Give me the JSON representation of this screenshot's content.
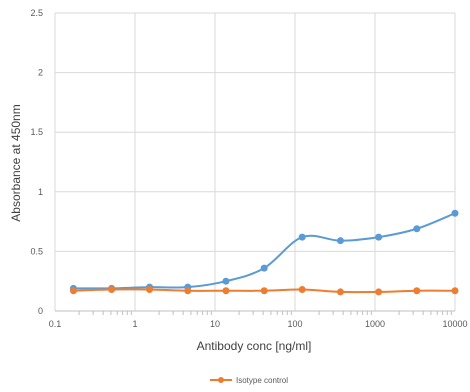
{
  "chart_data": {
    "type": "line",
    "xscale": "log",
    "xlim": [
      0.1,
      10000
    ],
    "ylim": [
      0,
      2.5
    ],
    "x_ticks": [
      "0.1",
      "1",
      "10",
      "100",
      "1000",
      "10000"
    ],
    "y_ticks": [
      "0",
      "0.5",
      "1",
      "1.5",
      "2",
      "2.5"
    ],
    "xlabel": "Antibody conc [ng/ml]",
    "ylabel": "Absorbance at 450nm",
    "grid": true,
    "legend_position": "bottom",
    "series": [
      {
        "name": "",
        "color": "#5b9bd5",
        "x": [
          0.17,
          0.51,
          1.52,
          4.57,
          13.7,
          41.2,
          123,
          370,
          1111,
          3333,
          10000
        ],
        "y": [
          0.19,
          0.19,
          0.2,
          0.2,
          0.25,
          0.36,
          0.62,
          0.59,
          0.62,
          0.69,
          0.82
        ]
      },
      {
        "name": "Isotype control",
        "color": "#ed7d31",
        "x": [
          0.17,
          0.51,
          1.52,
          4.57,
          13.7,
          41.2,
          123,
          370,
          1111,
          3333,
          10000
        ],
        "y": [
          0.17,
          0.18,
          0.18,
          0.17,
          0.17,
          0.17,
          0.18,
          0.16,
          0.16,
          0.17,
          0.17
        ]
      }
    ]
  }
}
